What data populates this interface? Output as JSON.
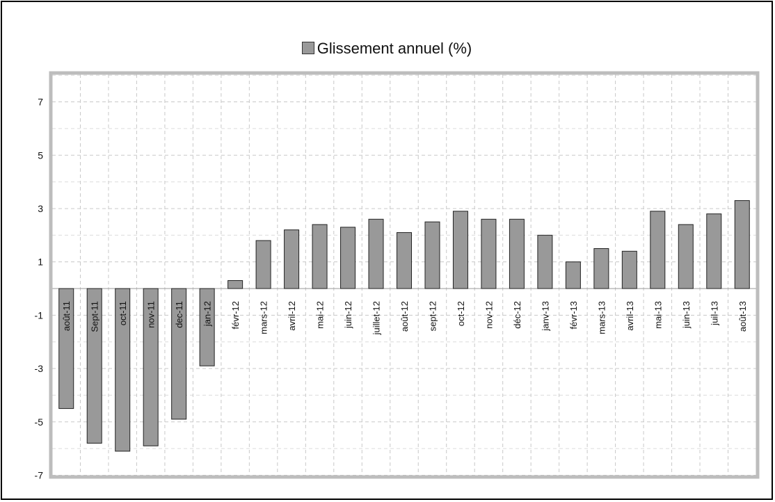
{
  "chart_data": {
    "type": "bar",
    "legend": [
      "Glissement annuel (%)"
    ],
    "series": [
      {
        "name": "Glissement annuel (%)",
        "color": "#999999",
        "values": [
          -4.5,
          -5.8,
          -6.1,
          -5.9,
          -4.9,
          -2.9,
          0.3,
          1.8,
          2.2,
          2.4,
          2.3,
          2.6,
          2.1,
          2.5,
          2.9,
          2.6,
          2.6,
          2.0,
          1.0,
          1.5,
          1.4,
          2.9,
          2.4,
          2.8,
          3.3
        ]
      }
    ],
    "categories": [
      "août-11",
      "Sept-11",
      "oct-11",
      "nov-11",
      "dec-11",
      "jan-12",
      "févr-12",
      "mars-12",
      "avril-12",
      "mai-12",
      "juin-12",
      "juillet-12",
      "août-12",
      "sept-12",
      "oct-12",
      "nov-12",
      "déc-12",
      "janv-13",
      "févr-13",
      "mars-13",
      "avril-13",
      "mai-13",
      "juin-13",
      "juil-13",
      "août-13"
    ],
    "yticks": [
      "7",
      "5",
      "3",
      "1",
      "-1",
      "-3",
      "-5",
      "-7"
    ],
    "ylim": [
      -7,
      8
    ],
    "grid": true,
    "legend_position": "top-center",
    "xlabel": "",
    "ylabel": "",
    "title": ""
  }
}
